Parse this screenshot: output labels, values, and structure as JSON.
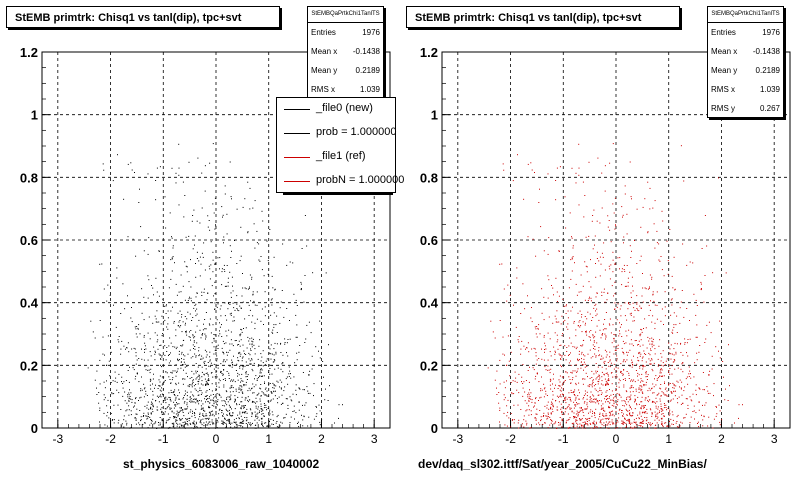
{
  "chart_data": [
    {
      "type": "scatter",
      "title": "StEMB primtrk: Chisq1 vs tanl(dip), tpc+svt",
      "xlabel": "st_physics_6083006_raw_1040002",
      "ylabel": "",
      "xlim": [
        -3.3,
        3.3
      ],
      "ylim": [
        0,
        1.2
      ],
      "xticks": [
        "-3",
        "-2",
        "-1",
        "0",
        "1",
        "2",
        "3"
      ],
      "yticks": [
        "0",
        "0.2",
        "0.4",
        "0.6",
        "0.8",
        "1",
        "1.2"
      ],
      "grid": true,
      "point_color": "#000000",
      "stats": {
        "name": "StEMBQaPrtkChi1TanlTS",
        "rows": [
          {
            "label": "Entries",
            "value": "1976"
          },
          {
            "label": "Mean x",
            "value": "-0.1438"
          },
          {
            "label": "Mean y",
            "value": "0.2189"
          },
          {
            "label": "RMS x",
            "value": "1.039"
          }
        ]
      },
      "legend": {
        "placement": "top-right",
        "entries": [
          {
            "label": "_file0 (new)",
            "color": "#000000"
          },
          {
            "label": "prob = 1.000000",
            "color": "#000000"
          },
          {
            "label": "_file1 (ref)",
            "color": "#cc0000"
          },
          {
            "label": "probN = 1.000000",
            "color": "#cc0000"
          }
        ]
      },
      "points": {
        "entries": 1976,
        "mean_x": -0.1438,
        "mean_y": 0.2189,
        "rms_x": 1.039,
        "rms_y": 0.267
      }
    },
    {
      "type": "scatter",
      "title": "StEMB primtrk: Chisq1 vs tanl(dip), tpc+svt",
      "xlabel": "dev/daq_sl302.ittf/Sat/year_2005/CuCu22_MinBias/",
      "ylabel": "",
      "xlim": [
        -3.3,
        3.3
      ],
      "ylim": [
        0,
        1.2
      ],
      "xticks": [
        "-3",
        "-2",
        "-1",
        "0",
        "1",
        "2",
        "3"
      ],
      "yticks": [
        "0",
        "0.2",
        "0.4",
        "0.6",
        "0.8",
        "1",
        "1.2"
      ],
      "grid": true,
      "point_color": "#cc0000",
      "stats": {
        "name": "StEMBQaPrtkChi1TanlTS",
        "rows": [
          {
            "label": "Entries",
            "value": "1976"
          },
          {
            "label": "Mean x",
            "value": "-0.1438"
          },
          {
            "label": "Mean y",
            "value": "0.2189"
          },
          {
            "label": "RMS x",
            "value": "1.039"
          },
          {
            "label": "RMS y",
            "value": "0.267"
          }
        ]
      },
      "points": {
        "entries": 1976,
        "mean_x": -0.1438,
        "mean_y": 0.2189,
        "rms_x": 1.039,
        "rms_y": 0.267
      }
    }
  ]
}
